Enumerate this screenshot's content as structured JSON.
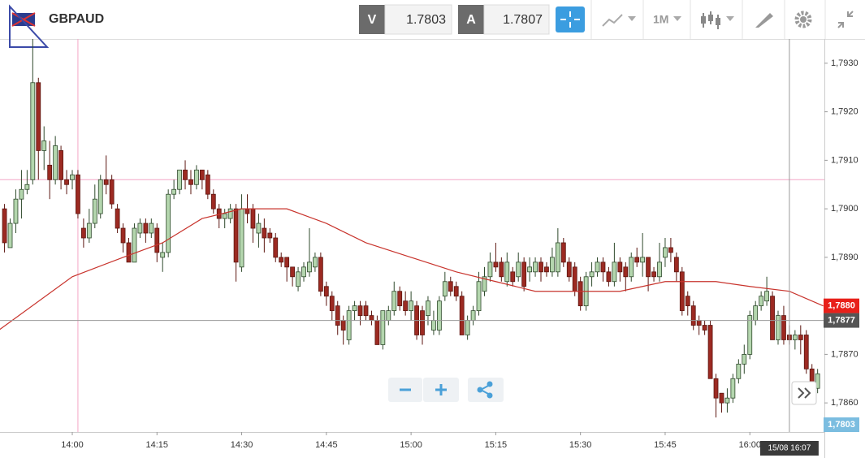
{
  "header": {
    "symbol": "GBPAUD",
    "bid_label": "V",
    "bid": "1.7803",
    "ask_label": "A",
    "ask": "1.7807",
    "timeframe": "1M"
  },
  "chart_data": {
    "type": "candlestick",
    "x": [
      828,
      829,
      830,
      831,
      832,
      833,
      834,
      835,
      836,
      837,
      838,
      839,
      840,
      841,
      842,
      843,
      844,
      845,
      846,
      847,
      848,
      849,
      850,
      851,
      852,
      853,
      854,
      855,
      856,
      857,
      858,
      859,
      860,
      861,
      862,
      863,
      864,
      865,
      866,
      867,
      868,
      869,
      870,
      871,
      872,
      873,
      874,
      875,
      876,
      877,
      878,
      879,
      880,
      881,
      882,
      883,
      884,
      885,
      886,
      887,
      888,
      889,
      890,
      891,
      892,
      893,
      894,
      895,
      896,
      897,
      898,
      899,
      900,
      901,
      902,
      903,
      904,
      905,
      906,
      907,
      908,
      909,
      910,
      911,
      912,
      913,
      914,
      915,
      916,
      917,
      918,
      919,
      920,
      921,
      922,
      923,
      924,
      925,
      926,
      927,
      928,
      929,
      930,
      931,
      932,
      933,
      934,
      935,
      936,
      937,
      938,
      939,
      940,
      941,
      942,
      943,
      944,
      945,
      946,
      947,
      948,
      949,
      950,
      951,
      952,
      953,
      954,
      955,
      956,
      957,
      958,
      959,
      960,
      961,
      962,
      963,
      964,
      965,
      966,
      967,
      968,
      969,
      970,
      971,
      972
    ],
    "open": [
      1.79,
      1.7892,
      1.7897,
      1.7902,
      1.7904,
      1.7906,
      1.7926,
      1.7912,
      1.7909,
      1.7906,
      1.7912,
      1.7906,
      1.7906,
      1.7907,
      1.7896,
      1.7894,
      1.7897,
      1.7899,
      1.7906,
      1.7906,
      1.79,
      1.7896,
      1.7893,
      1.7889,
      1.7895,
      1.7897,
      1.7895,
      1.7896,
      1.789,
      1.7891,
      1.7903,
      1.7904,
      1.7908,
      1.7906,
      1.7905,
      1.7908,
      1.7907,
      1.7903,
      1.79,
      1.7898,
      1.7898,
      1.79,
      1.7888,
      1.79,
      1.79,
      1.7895,
      1.7896,
      1.7895,
      1.7894,
      1.789,
      1.789,
      1.7888,
      1.7884,
      1.7886,
      1.7887,
      1.7888,
      1.789,
      1.7884,
      1.7882,
      1.788,
      1.7877,
      1.7873,
      1.7879,
      1.788,
      1.788,
      1.7878,
      1.7877,
      1.7872,
      1.7877,
      1.7879,
      1.7883,
      1.7881,
      1.7879,
      1.788,
      1.7879,
      1.7878,
      1.7875,
      1.7875,
      1.7882,
      1.7885,
      1.7884,
      1.7882,
      1.7874,
      1.7877,
      1.7879,
      1.7883,
      1.7886,
      1.7889,
      1.7889,
      1.7885,
      1.7887,
      1.7886,
      1.7889,
      1.7887,
      1.7887,
      1.7889,
      1.7888,
      1.7887,
      1.7887,
      1.7893,
      1.7889,
      1.7888,
      1.7885,
      1.788,
      1.7886,
      1.7887,
      1.7889,
      1.7887,
      1.7885,
      1.7889,
      1.7888,
      1.7886,
      1.789,
      1.7889,
      1.789,
      1.7887,
      1.7886,
      1.789,
      1.7892,
      1.789,
      1.7887,
      1.7882,
      1.788,
      1.7877,
      1.7876,
      1.7876,
      1.7865,
      1.7862,
      1.786,
      1.7861,
      1.7865,
      1.7868,
      1.787,
      1.7877,
      1.788,
      1.7881,
      1.7882,
      1.7873,
      1.7878,
      1.7874,
      1.7873,
      1.7874,
      1.7874,
      1.7867,
      1.7863
    ],
    "high": [
      1.7901,
      1.7898,
      1.7904,
      1.7908,
      1.7908,
      1.7935,
      1.7927,
      1.7917,
      1.7914,
      1.7915,
      1.7913,
      1.7908,
      1.7908,
      1.7908,
      1.7898,
      1.79,
      1.7905,
      1.7907,
      1.7911,
      1.7907,
      1.7901,
      1.7897,
      1.7894,
      1.7897,
      1.7898,
      1.7898,
      1.7898,
      1.7897,
      1.7893,
      1.7904,
      1.7906,
      1.7908,
      1.791,
      1.7908,
      1.7909,
      1.7908,
      1.7908,
      1.7904,
      1.7901,
      1.79,
      1.7901,
      1.7901,
      1.7903,
      1.7903,
      1.7901,
      1.7899,
      1.7898,
      1.7896,
      1.7895,
      1.7891,
      1.789,
      1.7888,
      1.7888,
      1.7889,
      1.7896,
      1.7891,
      1.7891,
      1.7885,
      1.7883,
      1.7881,
      1.7878,
      1.788,
      1.7881,
      1.7881,
      1.7881,
      1.7879,
      1.7878,
      1.7879,
      1.788,
      1.7885,
      1.7884,
      1.7883,
      1.7883,
      1.7881,
      1.788,
      1.7882,
      1.7879,
      1.7882,
      1.7887,
      1.7886,
      1.7885,
      1.7883,
      1.7878,
      1.788,
      1.7887,
      1.7888,
      1.7891,
      1.7893,
      1.789,
      1.7891,
      1.7888,
      1.7891,
      1.789,
      1.789,
      1.789,
      1.789,
      1.7889,
      1.7892,
      1.7896,
      1.7894,
      1.789,
      1.7889,
      1.7886,
      1.7887,
      1.7889,
      1.789,
      1.789,
      1.7888,
      1.7893,
      1.789,
      1.7889,
      1.7891,
      1.7892,
      1.7895,
      1.789,
      1.7888,
      1.7893,
      1.7894,
      1.7894,
      1.7891,
      1.7888,
      1.7883,
      1.7881,
      1.7878,
      1.7877,
      1.7877,
      1.7866,
      1.7862,
      1.7863,
      1.7866,
      1.7869,
      1.7872,
      1.7879,
      1.7881,
      1.7883,
      1.7886,
      1.7883,
      1.7879,
      1.788,
      1.7876,
      1.7875,
      1.7876,
      1.7875,
      1.7868,
      1.7867
    ],
    "low": [
      1.7891,
      1.7892,
      1.7895,
      1.7898,
      1.7903,
      1.7905,
      1.7906,
      1.7908,
      1.7902,
      1.7905,
      1.7904,
      1.7903,
      1.7904,
      1.7898,
      1.7892,
      1.7893,
      1.7896,
      1.7898,
      1.7903,
      1.79,
      1.7895,
      1.7891,
      1.7889,
      1.7889,
      1.7894,
      1.7893,
      1.7894,
      1.7889,
      1.7887,
      1.789,
      1.7902,
      1.7903,
      1.7904,
      1.7903,
      1.7904,
      1.7904,
      1.7902,
      1.7899,
      1.7896,
      1.7896,
      1.7897,
      1.7885,
      1.7887,
      1.7897,
      1.7893,
      1.7892,
      1.7891,
      1.7893,
      1.7889,
      1.7888,
      1.7885,
      1.7884,
      1.7883,
      1.7885,
      1.7886,
      1.7887,
      1.7882,
      1.788,
      1.7877,
      1.7874,
      1.7872,
      1.7872,
      1.7877,
      1.7876,
      1.7877,
      1.7876,
      1.7872,
      1.7871,
      1.7876,
      1.7878,
      1.7879,
      1.7878,
      1.7877,
      1.7873,
      1.7872,
      1.7876,
      1.7874,
      1.7874,
      1.7881,
      1.7882,
      1.7881,
      1.7874,
      1.7873,
      1.7876,
      1.7878,
      1.7882,
      1.7885,
      1.7887,
      1.7885,
      1.7884,
      1.7884,
      1.7885,
      1.7883,
      1.7885,
      1.7886,
      1.7885,
      1.7886,
      1.7886,
      1.7886,
      1.7888,
      1.7885,
      1.7882,
      1.7879,
      1.7879,
      1.7884,
      1.7886,
      1.7885,
      1.7884,
      1.7884,
      1.7885,
      1.7883,
      1.7885,
      1.7888,
      1.7886,
      1.7883,
      1.7885,
      1.7885,
      1.7888,
      1.7889,
      1.7885,
      1.7878,
      1.7878,
      1.7875,
      1.7874,
      1.7874,
      1.7865,
      1.7857,
      1.7858,
      1.7858,
      1.786,
      1.7864,
      1.7866,
      1.7869,
      1.7876,
      1.7879,
      1.788,
      1.7873,
      1.7872,
      1.7872,
      1.7872,
      1.7871,
      1.787,
      1.7866,
      1.7862,
      1.7862
    ],
    "close": [
      1.7893,
      1.7897,
      1.7902,
      1.7904,
      1.7905,
      1.7926,
      1.7912,
      1.7914,
      1.7906,
      1.7913,
      1.7906,
      1.7905,
      1.7907,
      1.7899,
      1.7894,
      1.7897,
      1.7902,
      1.7906,
      1.7905,
      1.7901,
      1.7896,
      1.7893,
      1.7889,
      1.7896,
      1.7897,
      1.7895,
      1.7897,
      1.7891,
      1.7891,
      1.7903,
      1.7904,
      1.7908,
      1.7906,
      1.7905,
      1.7908,
      1.7906,
      1.7903,
      1.79,
      1.7898,
      1.7899,
      1.79,
      1.7889,
      1.79,
      1.7899,
      1.7896,
      1.7897,
      1.7894,
      1.7894,
      1.789,
      1.7889,
      1.7888,
      1.7886,
      1.7887,
      1.7888,
      1.7889,
      1.789,
      1.7883,
      1.7882,
      1.7879,
      1.7876,
      1.7875,
      1.7879,
      1.788,
      1.7878,
      1.7878,
      1.7877,
      1.7872,
      1.7879,
      1.7879,
      1.7883,
      1.788,
      1.7879,
      1.7881,
      1.7874,
      1.7874,
      1.7881,
      1.7877,
      1.7881,
      1.7885,
      1.7883,
      1.7882,
      1.7874,
      1.7877,
      1.7879,
      1.7885,
      1.7886,
      1.7889,
      1.7888,
      1.7886,
      1.7889,
      1.7885,
      1.7889,
      1.7884,
      1.7888,
      1.7889,
      1.7887,
      1.7887,
      1.789,
      1.7893,
      1.7889,
      1.7886,
      1.7883,
      1.788,
      1.7886,
      1.7887,
      1.7889,
      1.7887,
      1.7885,
      1.7889,
      1.7887,
      1.7886,
      1.789,
      1.7889,
      1.789,
      1.7886,
      1.7886,
      1.7889,
      1.7892,
      1.7891,
      1.7887,
      1.7879,
      1.788,
      1.7876,
      1.7876,
      1.7875,
      1.7865,
      1.7861,
      1.786,
      1.7861,
      1.7865,
      1.7868,
      1.787,
      1.7878,
      1.788,
      1.7882,
      1.7883,
      1.7873,
      1.7878,
      1.7873,
      1.7873,
      1.7874,
      1.7873,
      1.7867,
      1.7864,
      1.7866
    ],
    "up_color": "#b4d6ae",
    "down_color": "#9c2a22",
    "moving_average": {
      "color": "#c8332c",
      "x": [
        827,
        840,
        849,
        856,
        863,
        870,
        878,
        885,
        892,
        900,
        908,
        915,
        922,
        930,
        937,
        945,
        954,
        960,
        967,
        973
      ],
      "values": [
        1.7875,
        1.7886,
        1.789,
        1.7893,
        1.7898,
        1.79,
        1.79,
        1.7897,
        1.7893,
        1.789,
        1.7887,
        1.7885,
        1.7883,
        1.7883,
        1.7883,
        1.7885,
        1.7885,
        1.7884,
        1.7883,
        1.788
      ]
    },
    "xlim": [
      827.2,
      973.2
    ],
    "ylim": [
      1.7854,
      1.7935
    ],
    "xticks": [
      {
        "value": 840,
        "label": "14:00"
      },
      {
        "value": 855,
        "label": "14:15"
      },
      {
        "value": 870,
        "label": "14:30"
      },
      {
        "value": 885,
        "label": "14:45"
      },
      {
        "value": 900,
        "label": "15:00"
      },
      {
        "value": 915,
        "label": "15:15"
      },
      {
        "value": 930,
        "label": "15:30"
      },
      {
        "value": 945,
        "label": "15:45"
      },
      {
        "value": 960,
        "label": "16:00"
      }
    ],
    "yticks": [
      {
        "value": 1.786,
        "label": "1,7860"
      },
      {
        "value": 1.787,
        "label": "1,7870"
      },
      {
        "value": 1.788,
        "label": "1,7880"
      },
      {
        "value": 1.789,
        "label": "1,7890"
      },
      {
        "value": 1.79,
        "label": "1,7900"
      },
      {
        "value": 1.791,
        "label": "1,7910"
      },
      {
        "value": 1.792,
        "label": "1,7920"
      },
      {
        "value": 1.793,
        "label": "1,7930"
      }
    ],
    "markers": {
      "x": 841,
      "y": 1.7906,
      "color": "#f4a6c6"
    },
    "crosshair": {
      "x": 967,
      "y": 1.7877,
      "label": "15/08 16:07"
    },
    "price_tags": [
      {
        "value": 1.788,
        "label": "1,7880",
        "color": "#e8201a"
      },
      {
        "value": 1.7877,
        "label": "1,7877",
        "color": "#555555"
      },
      {
        "value": 1.7803,
        "label": "1,7803",
        "color": "#7bbde0"
      }
    ]
  }
}
